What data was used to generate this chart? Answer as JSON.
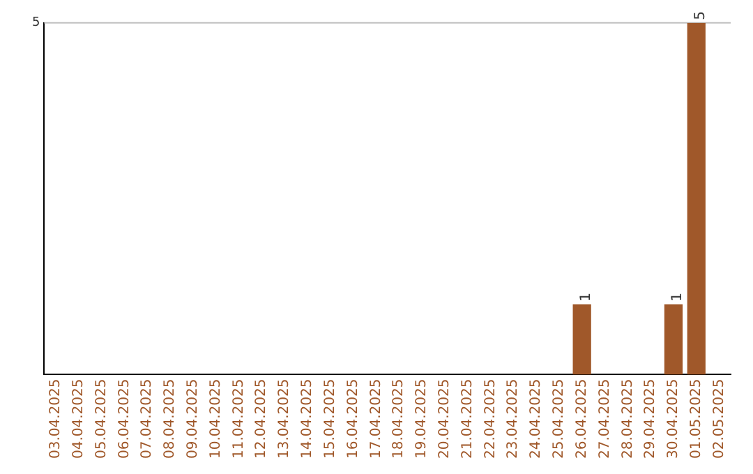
{
  "chart_data": {
    "type": "bar",
    "categories": [
      "03.04.2025",
      "04.04.2025",
      "05.04.2025",
      "06.04.2025",
      "07.04.2025",
      "08.04.2025",
      "09.04.2025",
      "10.04.2025",
      "11.04.2025",
      "12.04.2025",
      "13.04.2025",
      "14.04.2025",
      "15.04.2025",
      "16.04.2025",
      "17.04.2025",
      "18.04.2025",
      "19.04.2025",
      "20.04.2025",
      "21.04.2025",
      "22.04.2025",
      "23.04.2025",
      "24.04.2025",
      "25.04.2025",
      "26.04.2025",
      "27.04.2025",
      "28.04.2025",
      "29.04.2025",
      "30.04.2025",
      "01.05.2025",
      "02.05.2025"
    ],
    "values": [
      null,
      null,
      null,
      null,
      null,
      null,
      null,
      null,
      null,
      null,
      null,
      null,
      null,
      null,
      null,
      null,
      null,
      null,
      null,
      null,
      null,
      null,
      null,
      1,
      null,
      null,
      null,
      1,
      5,
      null
    ],
    "data_labels": true,
    "color": "#a0582a",
    "ylim": [
      0,
      5
    ],
    "yticks": [
      5
    ],
    "ref_lines": [
      {
        "axis": "y",
        "value": 5,
        "color": "#c0c0c0"
      }
    ],
    "legend": false
  }
}
